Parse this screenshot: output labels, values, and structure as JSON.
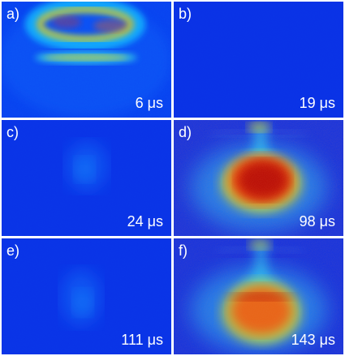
{
  "figure": {
    "panels": [
      {
        "label": "a)",
        "time": "6 μs",
        "signal": "ring"
      },
      {
        "label": "b)",
        "time": "19 μs",
        "signal": "background"
      },
      {
        "label": "c)",
        "time": "24 μs",
        "signal": "faint cloud"
      },
      {
        "label": "d)",
        "time": "98 μs",
        "signal": "strong cloud"
      },
      {
        "label": "e)",
        "time": "111 μs",
        "signal": "faint cloud"
      },
      {
        "label": "f)",
        "time": "143 μs",
        "signal": "strong cloud"
      }
    ],
    "colors": {
      "background": "#ffffff",
      "low_signal": "#0b2fe6",
      "medium_signal": "#20b9ff",
      "high_signal": "#ffd400",
      "peak_signal": "#a30000",
      "label_text": "#ffffff"
    }
  }
}
